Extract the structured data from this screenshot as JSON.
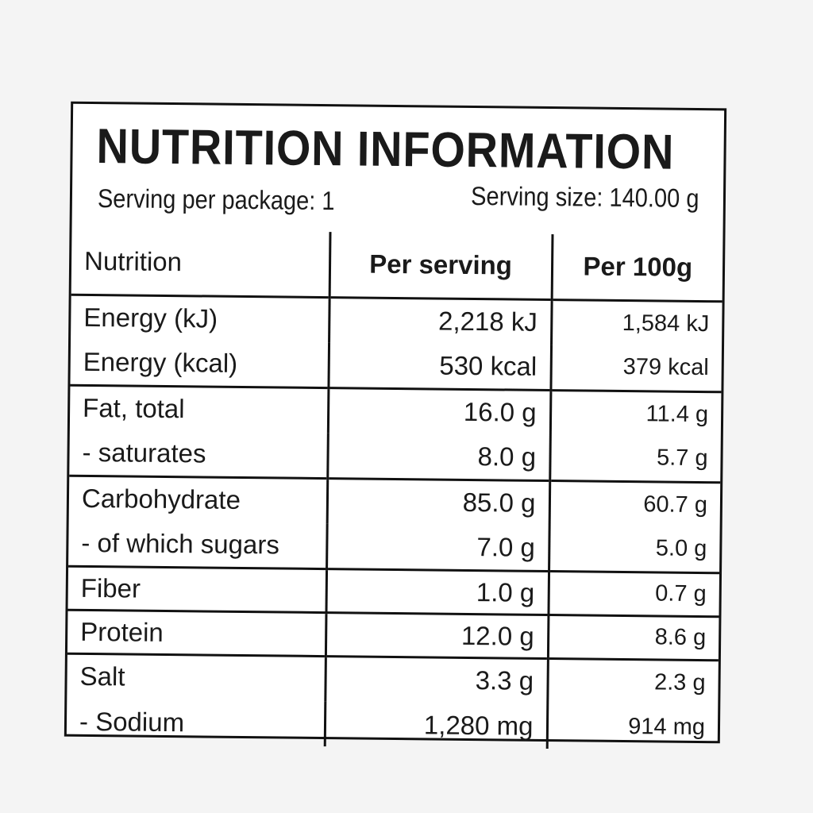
{
  "header": {
    "title": "NUTRITION INFORMATION",
    "serving_per_package": "Serving per package: 1",
    "serving_size": "Serving size: 140.00 g"
  },
  "table": {
    "columns": [
      "Nutrition",
      "Per serving",
      "Per 100g"
    ],
    "groups": [
      [
        [
          "Energy (kJ)",
          "2,218 kJ",
          "1,584 kJ"
        ],
        [
          "Energy (kcal)",
          "530 kcal",
          "379 kcal"
        ]
      ],
      [
        [
          "Fat, total",
          "16.0 g",
          "11.4 g"
        ],
        [
          "- saturates",
          "8.0 g",
          "5.7 g"
        ]
      ],
      [
        [
          "Carbohydrate",
          "85.0 g",
          "60.7 g"
        ],
        [
          "- of which sugars",
          "7.0 g",
          "5.0 g"
        ]
      ],
      [
        [
          "Fiber",
          "1.0 g",
          "0.7 g"
        ]
      ],
      [
        [
          "Protein",
          "12.0 g",
          "8.6 g"
        ]
      ],
      [
        [
          "Salt",
          "3.3 g",
          "2.3 g"
        ],
        [
          "- Sodium",
          "1,280 mg",
          "914 mg"
        ]
      ]
    ]
  }
}
